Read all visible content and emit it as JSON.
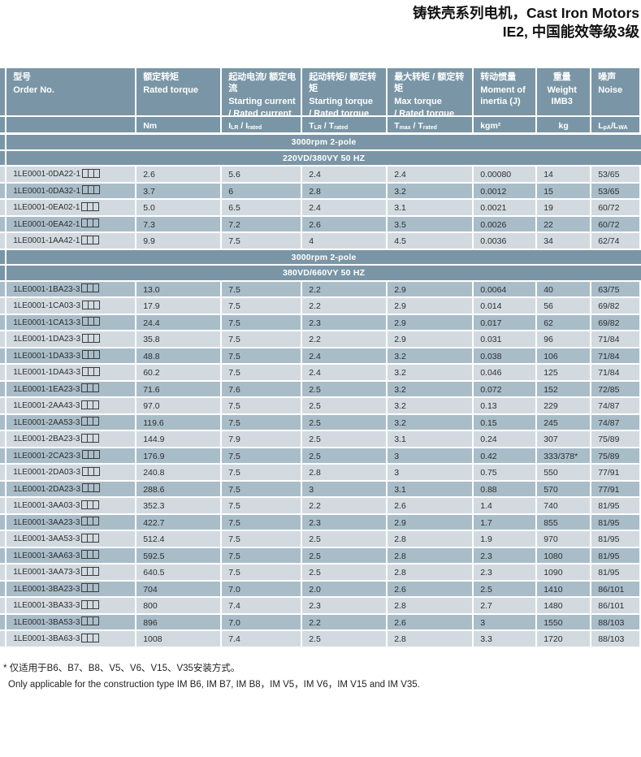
{
  "title": {
    "line1": "铸铁壳系列电机，Cast Iron Motors",
    "line2": "IE2, 中国能效等级3级"
  },
  "colors": {
    "header_slate": "#7A96A6",
    "row_light": "#D2DAE0",
    "row_dark": "#A9BDC9",
    "header_text": "#FFFFFF",
    "body_text": "#2D2D2D"
  },
  "table": {
    "columns": [
      {
        "key": "order_no",
        "zh": "型号",
        "en": "Order No.",
        "unit": []
      },
      {
        "key": "rated_torque",
        "zh": "额定转矩",
        "en": "Rated torque",
        "unit": [
          {
            "t": "Nm"
          }
        ]
      },
      {
        "key": "starting_current_ratio",
        "zh": "起动电流/ 额定电流",
        "en": "Starting current\n/ Rated current",
        "unit": [
          {
            "t": "I"
          },
          {
            "s": "LR"
          },
          {
            "t": " / I"
          },
          {
            "s": "rated"
          }
        ]
      },
      {
        "key": "starting_torque_ratio",
        "zh": "起动转矩/ 额定转矩",
        "en": "Starting torque\n/ Rated torque",
        "unit": [
          {
            "t": "T"
          },
          {
            "s": "LR"
          },
          {
            "t": " / T"
          },
          {
            "s": "rated"
          }
        ]
      },
      {
        "key": "max_torque_ratio",
        "zh": "最大转矩 / 额定转矩",
        "en": "Max torque\n/ Rated torque",
        "unit": [
          {
            "t": "T"
          },
          {
            "s": "max"
          },
          {
            "t": " / T"
          },
          {
            "s": "rated"
          }
        ]
      },
      {
        "key": "moment_of_inertia",
        "zh": "转动惯量",
        "en": "Moment of\ninertia (J)",
        "unit": [
          {
            "t": "kgm²"
          }
        ]
      },
      {
        "key": "weight",
        "zh": "重量",
        "en": "Weight\nIMB3",
        "unit": [
          {
            "t": "kg"
          }
        ]
      },
      {
        "key": "noise",
        "zh": "噪声",
        "en": "Noise",
        "unit": [
          {
            "t": "L"
          },
          {
            "s": "pA"
          },
          {
            "t": "/L"
          },
          {
            "s": "WA"
          }
        ]
      }
    ],
    "groups": [
      {
        "speed_label": "3000rpm 2-pole",
        "voltage_label": "220VD/380VY 50 HZ",
        "first_shade": "light",
        "rows": [
          [
            "1LE0001-0DA22-1□□□",
            "2.6",
            "5.6",
            "2.4",
            "2.4",
            "0.00080",
            "14",
            "53/65"
          ],
          [
            "1LE0001-0DA32-1□□□",
            "3.7",
            "6",
            "2.8",
            "3.2",
            "0.0012",
            "15",
            "53/65"
          ],
          [
            "1LE0001-0EA02-1□□□",
            "5.0",
            "6.5",
            "2.4",
            "3.1",
            "0.0021",
            "19",
            "60/72"
          ],
          [
            "1LE0001-0EA42-1□□□",
            "7.3",
            "7.2",
            "2.6",
            "3.5",
            "0.0026",
            "22",
            "60/72"
          ],
          [
            "1LE0001-1AA42-1□□□",
            "9.9",
            "7.5",
            "4",
            "4.5",
            "0.0036",
            "34",
            "62/74"
          ]
        ]
      },
      {
        "speed_label": "3000rpm 2-pole",
        "voltage_label": "380VD/660VY 50 HZ",
        "first_shade": "dark",
        "rows": [
          [
            "1LE0001-1BA23-3□□□",
            "13.0",
            "7.5",
            "2.2",
            "2.9",
            "0.0064",
            "40",
            "63/75"
          ],
          [
            "1LE0001-1CA03-3□□□",
            "17.9",
            "7.5",
            "2.2",
            "2.9",
            "0.014",
            "56",
            "69/82"
          ],
          [
            "1LE0001-1CA13-3□□□",
            "24.4",
            "7.5",
            "2.3",
            "2.9",
            "0.017",
            "62",
            "69/82"
          ],
          [
            "1LE0001-1DA23-3□□□",
            "35.8",
            "7.5",
            "2.2",
            "2.9",
            "0.031",
            "96",
            "71/84"
          ],
          [
            "1LE0001-1DA33-3□□□",
            "48.8",
            "7.5",
            "2.4",
            "3.2",
            "0.038",
            "106",
            "71/84"
          ],
          [
            "1LE0001-1DA43-3□□□",
            "60.2",
            "7.5",
            "2.4",
            "3.2",
            "0.046",
            "125",
            "71/84"
          ],
          [
            "1LE0001-1EA23-3□□□",
            "71.6",
            "7.6",
            "2.5",
            "3.2",
            "0.072",
            "152",
            "72/85"
          ],
          [
            "1LE0001-2AA43-3□□□",
            "97.0",
            "7.5",
            "2.5",
            "3.2",
            "0.13",
            "229",
            "74/87"
          ],
          [
            "1LE0001-2AA53-3□□□",
            "119.6",
            "7.5",
            "2.5",
            "3.2",
            "0.15",
            "245",
            "74/87"
          ],
          [
            "1LE0001-2BA23-3□□□",
            "144.9",
            "7.9",
            "2.5",
            "3.1",
            "0.24",
            "307",
            "75/89"
          ],
          [
            "1LE0001-2CA23-3□□□",
            "176.9",
            "7.5",
            "2.5",
            "3",
            "0.42",
            "333/378*",
            "75/89"
          ],
          [
            "1LE0001-2DA03-3□□□",
            "240.8",
            "7.5",
            "2.8",
            "3",
            "0.75",
            "550",
            "77/91"
          ],
          [
            "1LE0001-2DA23-3□□□",
            "288.6",
            "7.5",
            "3",
            "3.1",
            "0.88",
            "570",
            "77/91"
          ],
          [
            "1LE0001-3AA03-3□□□",
            "352.3",
            "7.5",
            "2.2",
            "2.6",
            "1.4",
            "740",
            "81/95"
          ],
          [
            "1LE0001-3AA23-3□□□",
            "422.7",
            "7.5",
            "2.3",
            "2.9",
            "1.7",
            "855",
            "81/95"
          ],
          [
            "1LE0001-3AA53-3□□□",
            "512.4",
            "7.5",
            "2.5",
            "2.8",
            "1.9",
            "970",
            "81/95"
          ],
          [
            "1LE0001-3AA63-3□□□",
            "592.5",
            "7.5",
            "2.5",
            "2.8",
            "2.3",
            "1080",
            "81/95"
          ],
          [
            "1LE0001-3AA73-3□□□",
            "640.5",
            "7.5",
            "2.5",
            "2.8",
            "2.3",
            "1090",
            "81/95"
          ],
          [
            "1LE0001-3BA23-3□□□",
            "704",
            "7.0",
            "2.0",
            "2.6",
            "2.5",
            "1410",
            "86/101"
          ],
          [
            "1LE0001-3BA33-3□□□",
            "800",
            "7.4",
            "2.3",
            "2.8",
            "2.7",
            "1480",
            "86/101"
          ],
          [
            "1LE0001-3BA53-3□□□",
            "896",
            "7.0",
            "2.2",
            "2.6",
            "3",
            "1550",
            "88/103"
          ],
          [
            "1LE0001-3BA63-3□□□",
            "1008",
            "7.4",
            "2.5",
            "2.8",
            "3.3",
            "1720",
            "88/103"
          ]
        ]
      }
    ]
  },
  "footnotes": {
    "zh": "* 仅适用于B6、B7、B8、V5、V6、V15、V35安装方式。",
    "en": "Only applicable for the construction type IM B6, IM B7, IM B8，IM V5，IM V6，IM V15 and IM V35."
  }
}
